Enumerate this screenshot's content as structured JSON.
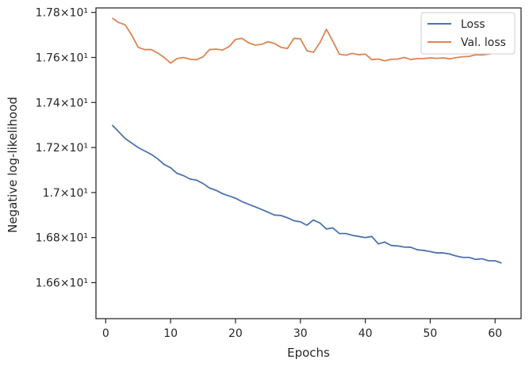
{
  "chart_data": {
    "type": "line",
    "xlabel": "Epochs",
    "ylabel": "Negative log-likelihood",
    "xlim": [
      -1.5,
      64
    ],
    "ylim": [
      16.44,
      17.82
    ],
    "x_ticks": [
      0,
      10,
      20,
      30,
      40,
      50,
      60
    ],
    "x_tick_labels": [
      "0",
      "10",
      "20",
      "30",
      "40",
      "50",
      "60"
    ],
    "y_ticks": [
      16.6,
      16.8,
      17.0,
      17.2,
      17.4,
      17.6,
      17.8
    ],
    "y_tick_labels": [
      "1.66×10¹",
      "1.68×10¹",
      "1.7×10¹",
      "1.72×10¹",
      "1.74×10¹",
      "1.76×10¹",
      "1.78×10¹"
    ],
    "grid": false,
    "legend_position": "top-right",
    "series": [
      {
        "name": "Loss",
        "color": "#4c72b0",
        "x": [
          1,
          2,
          3,
          4,
          5,
          6,
          7,
          8,
          9,
          10,
          11,
          12,
          13,
          14,
          15,
          16,
          17,
          18,
          19,
          20,
          21,
          22,
          23,
          24,
          25,
          26,
          27,
          28,
          29,
          30,
          31,
          32,
          33,
          34,
          35,
          36,
          37,
          38,
          39,
          40,
          41,
          42,
          43,
          44,
          45,
          46,
          47,
          48,
          49,
          50,
          51,
          52,
          53,
          54,
          55,
          56,
          57,
          58,
          59,
          60,
          61
        ],
        "values": [
          17.3,
          17.27,
          17.24,
          17.22,
          17.2,
          17.185,
          17.17,
          17.15,
          17.125,
          17.11,
          17.085,
          17.075,
          17.06,
          17.055,
          17.04,
          17.02,
          17.01,
          16.995,
          16.985,
          16.975,
          16.96,
          16.948,
          16.937,
          16.925,
          16.913,
          16.9,
          16.898,
          16.888,
          16.875,
          16.87,
          16.855,
          16.878,
          16.865,
          16.838,
          16.843,
          16.818,
          16.818,
          16.81,
          16.805,
          16.8,
          16.805,
          16.772,
          16.78,
          16.765,
          16.763,
          16.758,
          16.757,
          16.746,
          16.743,
          16.738,
          16.732,
          16.732,
          16.727,
          16.718,
          16.712,
          16.712,
          16.703,
          16.706,
          16.697,
          16.697,
          16.687
        ]
      },
      {
        "name": "Val. loss",
        "color": "#dd8452",
        "x": [
          1,
          2,
          3,
          4,
          5,
          6,
          7,
          8,
          9,
          10,
          11,
          12,
          13,
          14,
          15,
          16,
          17,
          18,
          19,
          20,
          21,
          22,
          23,
          24,
          25,
          26,
          27,
          28,
          29,
          30,
          31,
          32,
          33,
          34,
          35,
          36,
          37,
          38,
          39,
          40,
          41,
          42,
          43,
          44,
          45,
          46,
          47,
          48,
          49,
          50,
          51,
          52,
          53,
          54,
          55,
          56,
          57,
          58,
          59,
          60,
          61
        ],
        "values": [
          17.775,
          17.755,
          17.745,
          17.7,
          17.645,
          17.635,
          17.635,
          17.62,
          17.6,
          17.575,
          17.595,
          17.6,
          17.592,
          17.59,
          17.603,
          17.635,
          17.637,
          17.633,
          17.648,
          17.68,
          17.685,
          17.665,
          17.655,
          17.658,
          17.67,
          17.662,
          17.645,
          17.64,
          17.685,
          17.683,
          17.63,
          17.623,
          17.665,
          17.725,
          17.672,
          17.615,
          17.61,
          17.618,
          17.612,
          17.615,
          17.59,
          17.593,
          17.585,
          17.592,
          17.593,
          17.6,
          17.591,
          17.595,
          17.595,
          17.598,
          17.596,
          17.598,
          17.594,
          17.599,
          17.603,
          17.605,
          17.612,
          17.611,
          17.615,
          17.62,
          17.635
        ]
      }
    ]
  }
}
